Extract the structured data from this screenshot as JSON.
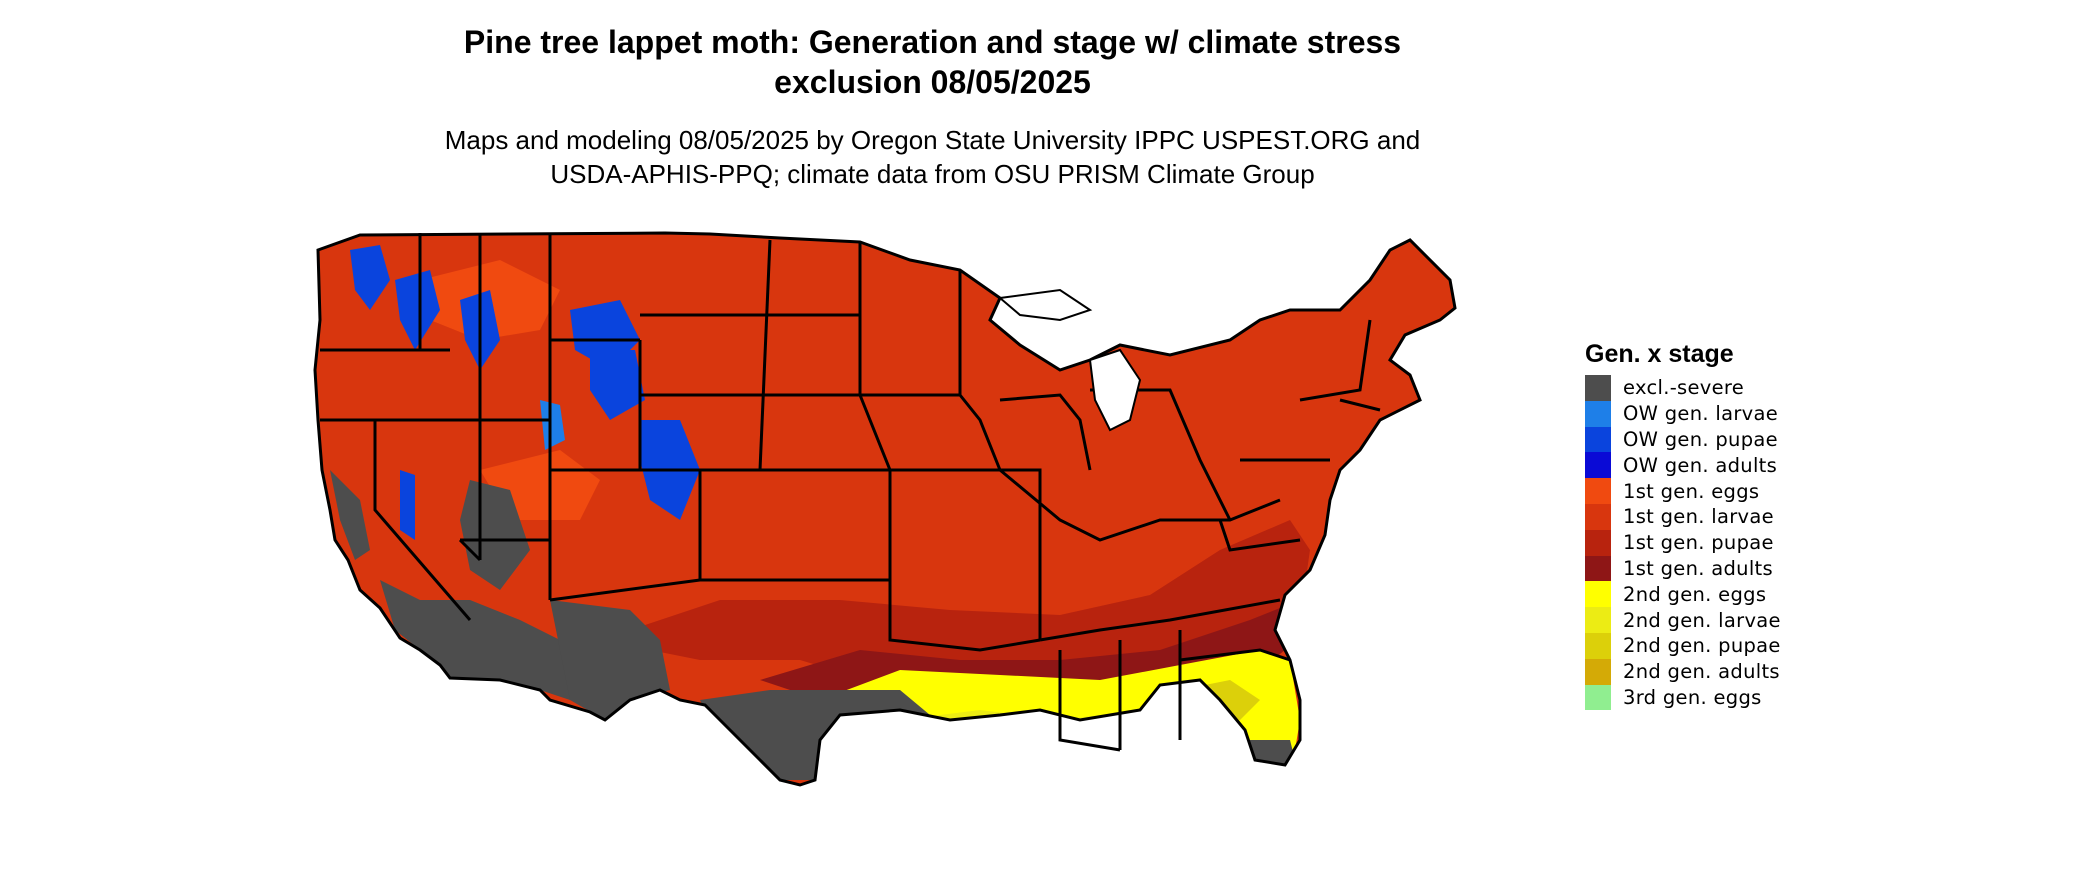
{
  "title": {
    "line1": "Pine tree lappet moth: Generation and stage w/ climate stress",
    "line2": "exclusion 08/05/2025"
  },
  "subtitle": {
    "line1": "Maps and modeling 08/05/2025 by Oregon State University IPPC USPEST.ORG and",
    "line2": "USDA-APHIS-PPQ; climate data from OSU PRISM Climate Group"
  },
  "legend": {
    "title": "Gen. x stage",
    "items": [
      {
        "label": "excl.-severe",
        "color": "#4d4d4d"
      },
      {
        "label": "OW gen. larvae",
        "color": "#1e7fe8"
      },
      {
        "label": "OW gen. pupae",
        "color": "#0a44dd"
      },
      {
        "label": "OW gen. adults",
        "color": "#0a0ad6"
      },
      {
        "label": "1st gen. eggs",
        "color": "#f04a10"
      },
      {
        "label": "1st gen. larvae",
        "color": "#d8360e"
      },
      {
        "label": "1st gen. pupae",
        "color": "#b8230e"
      },
      {
        "label": "1st gen. adults",
        "color": "#8e1616"
      },
      {
        "label": "2nd gen. eggs",
        "color": "#ffff00"
      },
      {
        "label": "2nd gen. larvae",
        "color": "#ecec14"
      },
      {
        "label": "2nd gen. pupae",
        "color": "#dcd00a"
      },
      {
        "label": "2nd gen. adults",
        "color": "#d4aa06"
      },
      {
        "label": "3rd gen. eggs",
        "color": "#90ee90"
      }
    ]
  }
}
